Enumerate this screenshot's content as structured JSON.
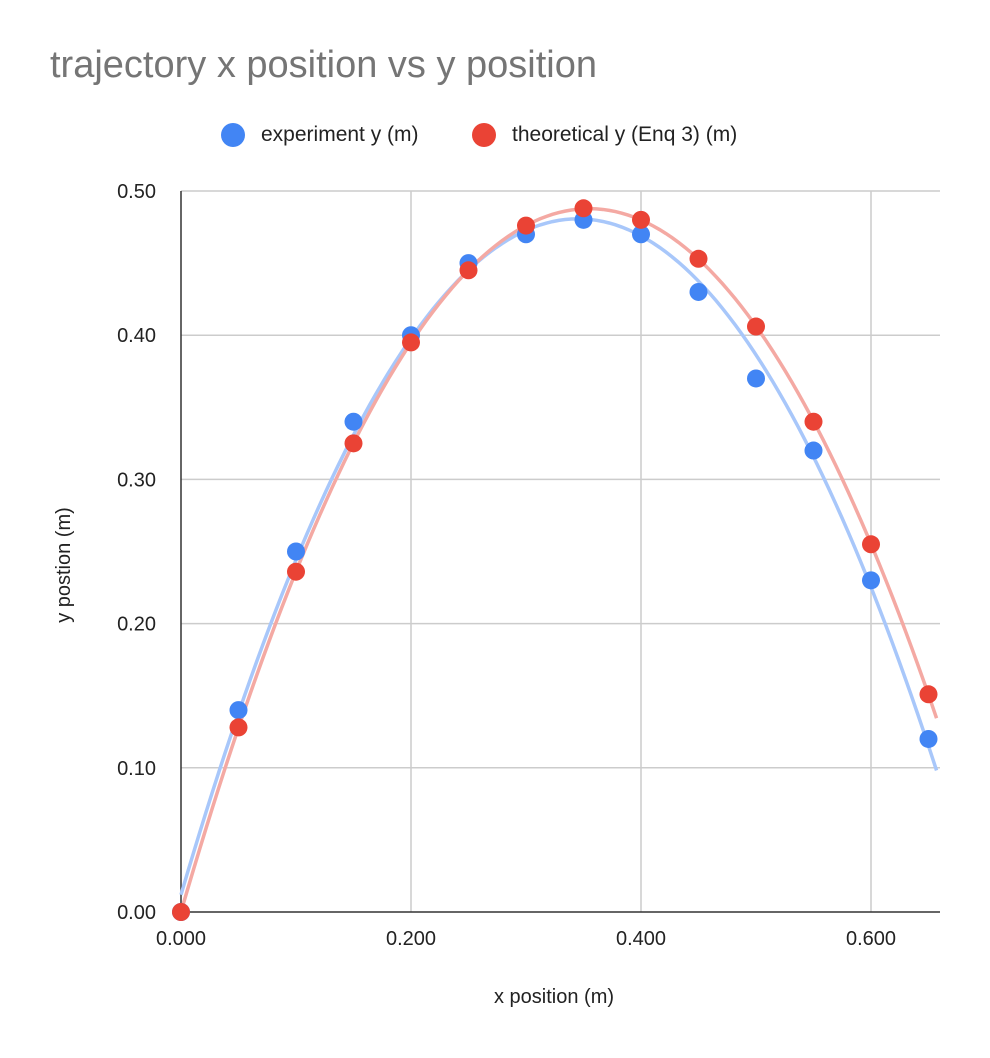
{
  "chart_data": {
    "type": "scatter",
    "title": "trajectory x position vs y position",
    "xlabel": "x position (m)",
    "ylabel": "y postion (m)",
    "xlim": [
      0,
      0.66
    ],
    "ylim": [
      0,
      0.5
    ],
    "x_ticks": [
      "0.000",
      "0.200",
      "0.400",
      "0.600"
    ],
    "x_tick_values": [
      0,
      0.2,
      0.4,
      0.6
    ],
    "y_ticks": [
      "0.00",
      "0.10",
      "0.20",
      "0.30",
      "0.40",
      "0.50"
    ],
    "y_tick_values": [
      0,
      0.1,
      0.2,
      0.3,
      0.4,
      0.5
    ],
    "grid": true,
    "legend_position": "top",
    "trendlines": true,
    "series": [
      {
        "name": "experiment y (m)",
        "color": "#4285F4",
        "trend_color": "#A8C7FA",
        "x": [
          0,
          0.05,
          0.1,
          0.15,
          0.2,
          0.25,
          0.3,
          0.35,
          0.4,
          0.45,
          0.5,
          0.55,
          0.6,
          0.65
        ],
        "y": [
          0,
          0.14,
          0.25,
          0.34,
          0.4,
          0.45,
          0.47,
          0.48,
          0.47,
          0.43,
          0.37,
          0.32,
          0.23,
          0.12
        ]
      },
      {
        "name": "theoretical y (Enq 3) (m)",
        "color": "#EA4335",
        "trend_color": "#F4A9A3",
        "x": [
          0,
          0.05,
          0.1,
          0.15,
          0.2,
          0.25,
          0.3,
          0.35,
          0.4,
          0.45,
          0.5,
          0.55,
          0.6,
          0.65
        ],
        "y": [
          0,
          0.128,
          0.236,
          0.325,
          0.395,
          0.445,
          0.476,
          0.488,
          0.48,
          0.453,
          0.406,
          0.34,
          0.255,
          0.151
        ]
      }
    ]
  }
}
